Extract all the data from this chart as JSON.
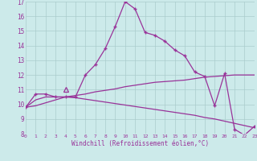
{
  "xlabel": "Windchill (Refroidissement éolien,°C)",
  "bg_color": "#cceaea",
  "grid_color": "#aacccc",
  "line_color": "#993399",
  "xmin": 0,
  "xmax": 23,
  "ymin": 8,
  "ymax": 17,
  "yticks": [
    8,
    9,
    10,
    11,
    12,
    13,
    14,
    15,
    16,
    17
  ],
  "xticks": [
    0,
    1,
    2,
    3,
    4,
    5,
    6,
    7,
    8,
    9,
    10,
    11,
    12,
    13,
    14,
    15,
    16,
    17,
    18,
    19,
    20,
    21,
    22,
    23
  ],
  "series1_x": [
    0,
    1,
    2,
    3,
    4,
    5,
    6,
    7,
    8,
    9,
    10,
    11,
    12,
    13,
    14,
    15,
    16,
    17,
    18,
    19,
    20,
    21,
    22,
    23
  ],
  "series1_y": [
    9.8,
    10.7,
    10.7,
    10.5,
    10.5,
    10.5,
    12.0,
    12.7,
    13.8,
    15.3,
    17.0,
    16.5,
    14.9,
    14.7,
    14.3,
    13.7,
    13.3,
    12.2,
    11.9,
    9.9,
    12.1,
    8.3,
    7.9,
    8.5
  ],
  "series2_x": [
    0,
    1,
    2,
    3,
    4,
    5,
    6,
    7,
    8,
    9,
    10,
    11,
    12,
    13,
    14,
    15,
    16,
    17,
    18,
    19,
    20,
    21,
    22,
    23
  ],
  "series2_y": [
    9.8,
    9.9,
    10.1,
    10.3,
    10.5,
    10.6,
    10.7,
    10.85,
    10.95,
    11.05,
    11.2,
    11.3,
    11.4,
    11.5,
    11.55,
    11.6,
    11.65,
    11.75,
    11.85,
    11.9,
    11.95,
    12.0,
    12.0,
    12.0
  ],
  "series3_x": [
    0,
    1,
    2,
    3,
    4,
    5,
    6,
    7,
    8,
    9,
    10,
    11,
    12,
    13,
    14,
    15,
    16,
    17,
    18,
    19,
    20,
    21,
    22,
    23
  ],
  "series3_y": [
    9.8,
    10.3,
    10.5,
    10.5,
    10.5,
    10.45,
    10.35,
    10.25,
    10.15,
    10.05,
    9.95,
    9.85,
    9.75,
    9.65,
    9.55,
    9.45,
    9.35,
    9.25,
    9.1,
    9.0,
    8.85,
    8.7,
    8.55,
    8.4
  ],
  "triangle_x": 4.0,
  "triangle_y": 11.0
}
